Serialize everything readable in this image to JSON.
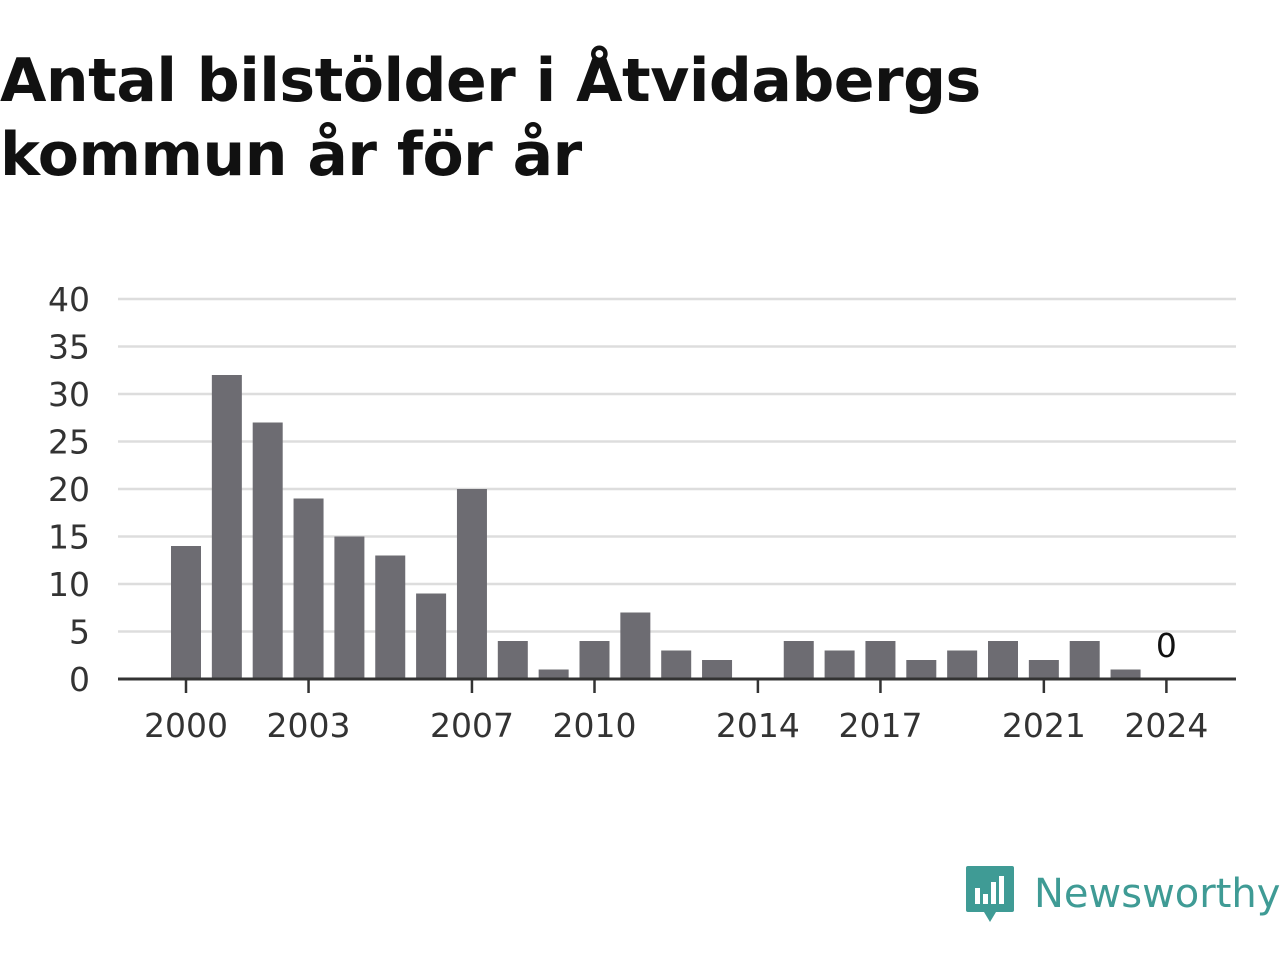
{
  "title": "Antal bilstölder i Åtvidabergs kommun år för år",
  "brand": {
    "name": "Newsworthy",
    "icon": "newsworthy-logo-icon",
    "color": "#3f9b95"
  },
  "colors": {
    "bar": "#6d6c72",
    "grid": "#dddddd",
    "axis": "#333333"
  },
  "chart_data": {
    "type": "bar",
    "title": "Antal bilstölder i Åtvidabergs kommun år för år",
    "xlabel": "",
    "ylabel": "",
    "categories": [
      "2000",
      "2001",
      "2002",
      "2003",
      "2004",
      "2005",
      "2006",
      "2007",
      "2008",
      "2009",
      "2010",
      "2011",
      "2012",
      "2013",
      "2014",
      "2015",
      "2016",
      "2017",
      "2018",
      "2019",
      "2020",
      "2021",
      "2022",
      "2023",
      "2024"
    ],
    "values": [
      14,
      32,
      27,
      19,
      15,
      13,
      9,
      20,
      4,
      1,
      4,
      7,
      3,
      2,
      0,
      4,
      3,
      4,
      2,
      3,
      4,
      2,
      4,
      1,
      0
    ],
    "x_tick_labels": [
      "2000",
      "2003",
      "2007",
      "2010",
      "2014",
      "2017",
      "2021",
      "2024"
    ],
    "y_ticks": [
      0,
      5,
      10,
      15,
      20,
      25,
      30,
      35,
      40
    ],
    "ylim": [
      0,
      40
    ],
    "grid": true,
    "data_labels": [
      {
        "category": "2024",
        "text": "0"
      }
    ]
  }
}
